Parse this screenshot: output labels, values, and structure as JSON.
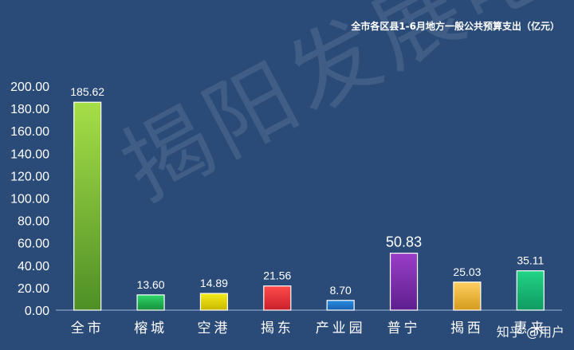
{
  "chart_data": {
    "type": "bar",
    "title": "全市各区县1-6月地方一般公共预算支出（亿元）",
    "categories": [
      "全市",
      "榕城",
      "空港",
      "揭东",
      "产业园",
      "普宁",
      "揭西",
      "惠来"
    ],
    "values": [
      185.62,
      13.6,
      14.89,
      21.56,
      8.7,
      50.83,
      25.03,
      35.11
    ],
    "value_labels": [
      "185.62",
      "13.60",
      "14.89",
      "21.56",
      "8.70",
      "50.83",
      "25.03",
      "35.11"
    ],
    "ylim": [
      0,
      200
    ],
    "yticks": [
      "0.00",
      "20.00",
      "40.00",
      "60.00",
      "80.00",
      "100.00",
      "120.00",
      "140.00",
      "160.00",
      "180.00",
      "200.00"
    ],
    "ytick_values": [
      0,
      20,
      40,
      60,
      80,
      100,
      120,
      140,
      160,
      180,
      200
    ],
    "grid": false,
    "legend": "none",
    "bar_colors": [
      [
        "#a6df48",
        "#4e8f26"
      ],
      [
        "#2fd66a",
        "#16903c"
      ],
      [
        "#f4ec18",
        "#c9b800"
      ],
      [
        "#ff4b4b",
        "#c8202a"
      ],
      [
        "#2a8fe0",
        "#1560b0"
      ],
      [
        "#9a3ec8",
        "#5e1f8e"
      ],
      [
        "#ffd060",
        "#d49a1c"
      ],
      [
        "#22d486",
        "#0f9a62"
      ]
    ]
  },
  "watermark": "揭阳发展吧",
  "corner_mark": "知乎 @用户"
}
